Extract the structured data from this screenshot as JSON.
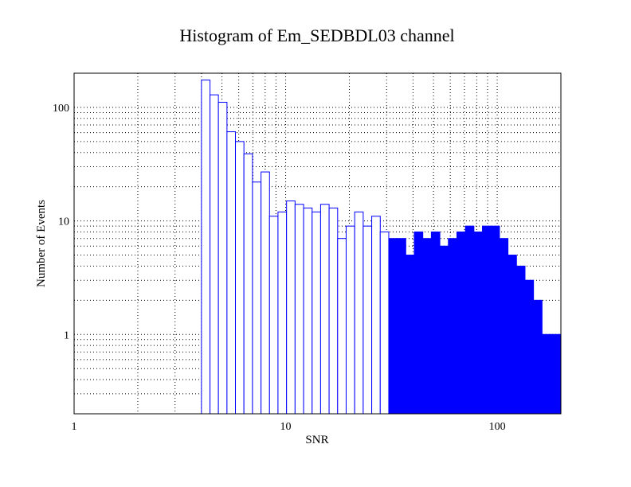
{
  "chart_data": {
    "type": "bar",
    "title": "Histogram of Em_SEDBDL03 channel",
    "xlabel": "SNR",
    "ylabel": "Number of Events",
    "x_scale": "log",
    "y_scale": "log",
    "xlim": [
      1,
      200
    ],
    "ylim": [
      0.2,
      200
    ],
    "x_ticks": [
      {
        "value": 1,
        "label": "1"
      },
      {
        "value": 10,
        "label": "10"
      },
      {
        "value": 100,
        "label": "100"
      }
    ],
    "y_ticks": [
      {
        "value": 1,
        "label": "1"
      },
      {
        "value": 10,
        "label": "10"
      },
      {
        "value": 100,
        "label": "100"
      }
    ],
    "grid": true,
    "legend": "none",
    "series_color": "#0000ff",
    "bin_edges": [
      4.0,
      4.39,
      4.81,
      5.28,
      5.79,
      6.35,
      6.97,
      7.65,
      8.39,
      9.2,
      10.1,
      11.08,
      12.16,
      13.34,
      14.63,
      16.05,
      17.61,
      19.32,
      21.2,
      23.26,
      25.52,
      28.0,
      30.72,
      33.7,
      36.97,
      40.56,
      44.5,
      48.82,
      53.56,
      58.77,
      64.48,
      70.74,
      77.61,
      85.15,
      93.42,
      102.5,
      112.45,
      123.37,
      135.35,
      148.49,
      162.91,
      178.73,
      196.09,
      200.0
    ],
    "counts": [
      174,
      129,
      111,
      61,
      50,
      39,
      22,
      27,
      11,
      12,
      15,
      14,
      13,
      12,
      14,
      13,
      7,
      9,
      12,
      9,
      11,
      8,
      7,
      7,
      5,
      8,
      7,
      8,
      6,
      7,
      8,
      9,
      8,
      9,
      9,
      7,
      5,
      4,
      3,
      2,
      1,
      1,
      1
    ],
    "note_density": "Bins above SNR≈30 are densely packed narrow bins rendered as filled blue"
  }
}
